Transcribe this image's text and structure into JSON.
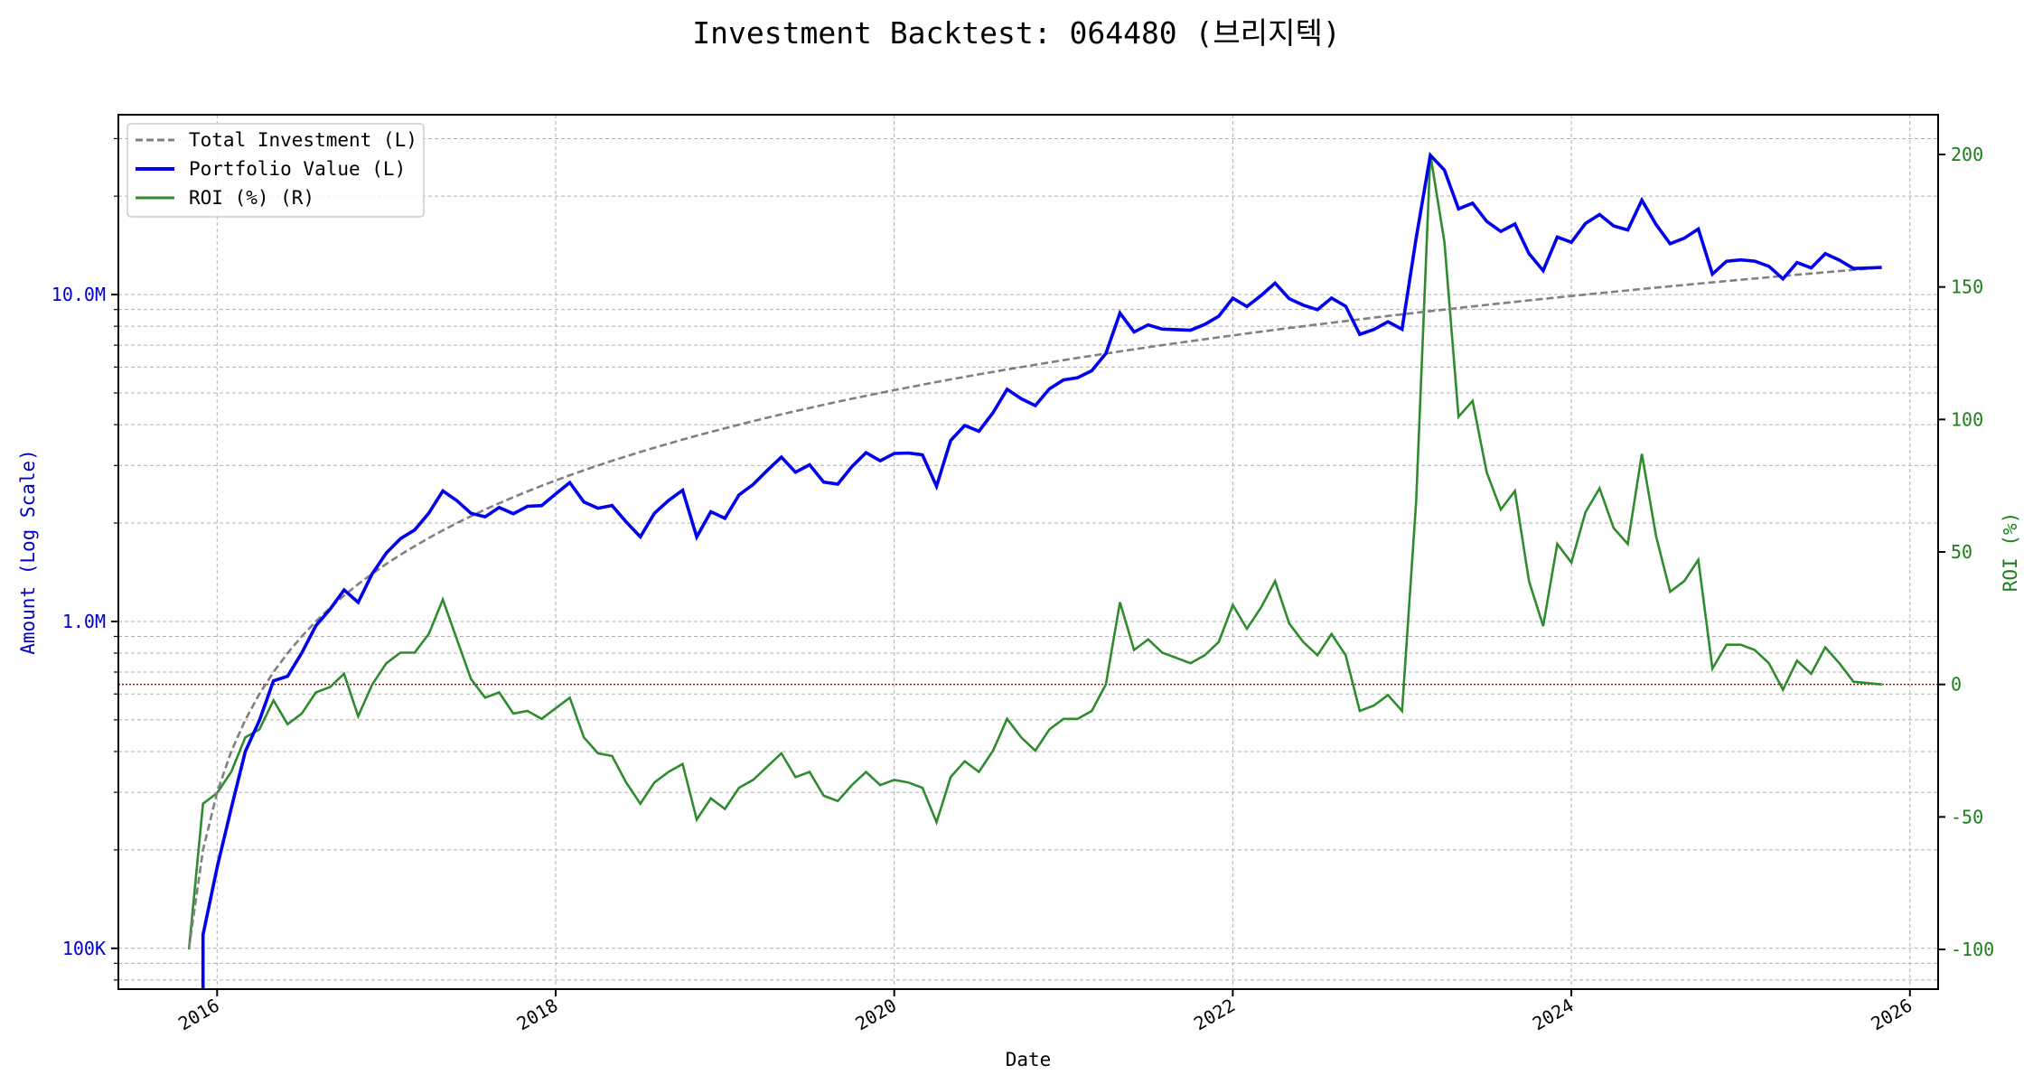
{
  "chart_data": {
    "type": "line",
    "title": "Investment Backtest: 064480 (브리지텍)",
    "xlabel": "Date",
    "ylabel_left": "Amount (Log Scale)",
    "ylabel_right": "ROI (%)",
    "left_scale": "log",
    "ylim_left": [
      75000,
      35500000
    ],
    "ylim_right": [
      -115,
      215
    ],
    "xlim": [
      "2015-06",
      "2026-03"
    ],
    "x_ticks": [
      "2016",
      "2018",
      "2020",
      "2022",
      "2024",
      "2026"
    ],
    "y_ticks_left": [
      {
        "value": 100000,
        "label": "100K"
      },
      {
        "value": 1000000,
        "label": "1.0M"
      },
      {
        "value": 10000000,
        "label": "10.0M"
      }
    ],
    "y_ticks_right": [
      -100,
      -50,
      0,
      50,
      100,
      150,
      200
    ],
    "grid": true,
    "legend_position": "top-left",
    "reference_line": {
      "axis": "right",
      "value": 0,
      "color": "#cc0000",
      "style": "dotted"
    },
    "colors": {
      "total_investment": "#808080",
      "portfolio_value": "#0000ee",
      "roi": "#2e8b2e",
      "left_axis_text": "#0000cc",
      "right_axis_text": "#1a7f1a"
    },
    "dates": [
      "2015-11",
      "2015-12",
      "2016-01",
      "2016-02",
      "2016-03",
      "2016-04",
      "2016-05",
      "2016-06",
      "2016-07",
      "2016-08",
      "2016-09",
      "2016-10",
      "2016-11",
      "2016-12",
      "2017-01",
      "2017-02",
      "2017-03",
      "2017-04",
      "2017-05",
      "2017-06",
      "2017-07",
      "2017-08",
      "2017-09",
      "2017-10",
      "2017-11",
      "2017-12",
      "2018-01",
      "2018-02",
      "2018-03",
      "2018-04",
      "2018-05",
      "2018-06",
      "2018-07",
      "2018-08",
      "2018-09",
      "2018-10",
      "2018-11",
      "2018-12",
      "2019-01",
      "2019-02",
      "2019-03",
      "2019-04",
      "2019-05",
      "2019-06",
      "2019-07",
      "2019-08",
      "2019-09",
      "2019-10",
      "2019-11",
      "2019-12",
      "2020-01",
      "2020-02",
      "2020-03",
      "2020-04",
      "2020-05",
      "2020-06",
      "2020-07",
      "2020-08",
      "2020-09",
      "2020-10",
      "2020-11",
      "2020-12",
      "2021-01",
      "2021-02",
      "2021-03",
      "2021-04",
      "2021-05",
      "2021-06",
      "2021-07",
      "2021-08",
      "2021-09",
      "2021-10",
      "2021-11",
      "2021-12",
      "2022-01",
      "2022-02",
      "2022-03",
      "2022-04",
      "2022-05",
      "2022-06",
      "2022-07",
      "2022-08",
      "2022-09",
      "2022-10",
      "2022-11",
      "2022-12",
      "2023-01",
      "2023-02",
      "2023-03",
      "2023-04",
      "2023-05",
      "2023-06",
      "2023-07",
      "2023-08",
      "2023-09",
      "2023-10",
      "2023-11",
      "2023-12",
      "2024-01",
      "2024-02",
      "2024-03",
      "2024-04",
      "2024-05",
      "2024-06",
      "2024-07",
      "2024-08",
      "2024-09",
      "2024-10",
      "2024-11",
      "2024-12",
      "2025-01",
      "2025-02",
      "2025-03",
      "2025-04",
      "2025-05",
      "2025-06",
      "2025-07",
      "2025-08",
      "2025-09",
      "2025-10",
      "2025-11"
    ],
    "series": [
      {
        "name": "Total Investment (L)",
        "axis": "left",
        "style": "dashed",
        "values": [
          100000,
          200000,
          300000,
          400000,
          500000,
          600000,
          700000,
          800000,
          900000,
          1000000,
          1100000,
          1200000,
          1300000,
          1400000,
          1500000,
          1600000,
          1700000,
          1800000,
          1900000,
          2000000,
          2100000,
          2200000,
          2300000,
          2400000,
          2500000,
          2600000,
          2700000,
          2800000,
          2900000,
          3000000,
          3100000,
          3200000,
          3300000,
          3400000,
          3500000,
          3600000,
          3700000,
          3800000,
          3900000,
          4000000,
          4100000,
          4200000,
          4300000,
          4400000,
          4500000,
          4600000,
          4700000,
          4800000,
          4900000,
          5000000,
          5100000,
          5200000,
          5300000,
          5400000,
          5500000,
          5600000,
          5700000,
          5800000,
          5900000,
          6000000,
          6100000,
          6200000,
          6300000,
          6400000,
          6500000,
          6600000,
          6700000,
          6800000,
          6900000,
          7000000,
          7100000,
          7200000,
          7300000,
          7400000,
          7500000,
          7600000,
          7700000,
          7800000,
          7900000,
          8000000,
          8100000,
          8200000,
          8300000,
          8400000,
          8500000,
          8600000,
          8700000,
          8800000,
          8900000,
          9000000,
          9100000,
          9200000,
          9300000,
          9400000,
          9500000,
          9600000,
          9700000,
          9800000,
          9900000,
          10000000,
          10100000,
          10200000,
          10300000,
          10400000,
          10500000,
          10600000,
          10700000,
          10800000,
          10900000,
          11000000,
          11100000,
          11200000,
          11300000,
          11400000,
          11500000,
          11600000,
          11700000,
          11800000,
          11900000,
          12000000,
          12100000
        ]
      },
      {
        "name": "Portfolio Value (L)",
        "axis": "left",
        "style": "solid",
        "values": [
          0,
          110000,
          177000,
          268000,
          400000,
          498000,
          658000,
          680000,
          801000,
          970000,
          1089000,
          1248000,
          1144000,
          1400000,
          1620000,
          1792000,
          1904000,
          2142000,
          2508000,
          2340000,
          2142000,
          2090000,
          2231000,
          2136000,
          2250000,
          2262000,
          2457000,
          2660000,
          2320000,
          2220000,
          2263000,
          2016000,
          1815000,
          2142000,
          2345000,
          2520000,
          1813000,
          2166000,
          2067000,
          2440000,
          2624000,
          2898000,
          3182000,
          2860000,
          3015000,
          2668000,
          2632000,
          2976000,
          3283000,
          3100000,
          3264000,
          3276000,
          3233000,
          2592000,
          3575000,
          3976000,
          3819000,
          4350000,
          5133000,
          4800000,
          4575000,
          5146000,
          5481000,
          5568000,
          5850000,
          6600000,
          8777000,
          7684000,
          8073000,
          7840000,
          7810000,
          7776000,
          8103000,
          8584000,
          9750000,
          9196000,
          9933000,
          10842000,
          9717000,
          9280000,
          8991000,
          9758000,
          9213000,
          7560000,
          7820000,
          8256000,
          7830000,
          14872000,
          26700000,
          24030000,
          18291000,
          19044000,
          16740000,
          15604000,
          16435000,
          13344000,
          11834000,
          14994000,
          14454000,
          16500000,
          17574000,
          16218000,
          15759000,
          19448000,
          16380000,
          14310000,
          14873000,
          15876000,
          11554000,
          12650000,
          12765000,
          12656000,
          12204000,
          11172000,
          12535000,
          12064000,
          13338000,
          12744000,
          12019000,
          12060000,
          12100000
        ]
      },
      {
        "name": "ROI (%) (R)",
        "axis": "right",
        "style": "solid",
        "values": [
          -100,
          -45,
          -41,
          -33,
          -20,
          -17,
          -6,
          -15,
          -11,
          -3,
          -1,
          4,
          -12,
          0,
          8,
          12,
          12,
          19,
          32,
          17,
          2,
          -5,
          -3,
          -11,
          -10,
          -13,
          -9,
          -5,
          -20,
          -26,
          -27,
          -37,
          -45,
          -37,
          -33,
          -30,
          -51,
          -43,
          -47,
          -39,
          -36,
          -31,
          -26,
          -35,
          -33,
          -42,
          -44,
          -38,
          -33,
          -38,
          -36,
          -37,
          -39,
          -52,
          -35,
          -29,
          -33,
          -25,
          -13,
          -20,
          -25,
          -17,
          -13,
          -13,
          -10,
          0,
          31,
          13,
          17,
          12,
          10,
          8,
          11,
          16,
          30,
          21,
          29,
          39,
          23,
          16,
          11,
          19,
          11,
          -10,
          -8,
          -4,
          -10,
          69,
          200,
          167,
          101,
          107,
          80,
          66,
          73,
          39,
          22,
          53,
          46,
          65,
          74,
          59,
          53,
          87,
          56,
          35,
          39,
          47,
          6,
          15,
          15,
          13,
          8,
          -2,
          9,
          4,
          14,
          8,
          1,
          0.5,
          0
        ]
      }
    ]
  }
}
